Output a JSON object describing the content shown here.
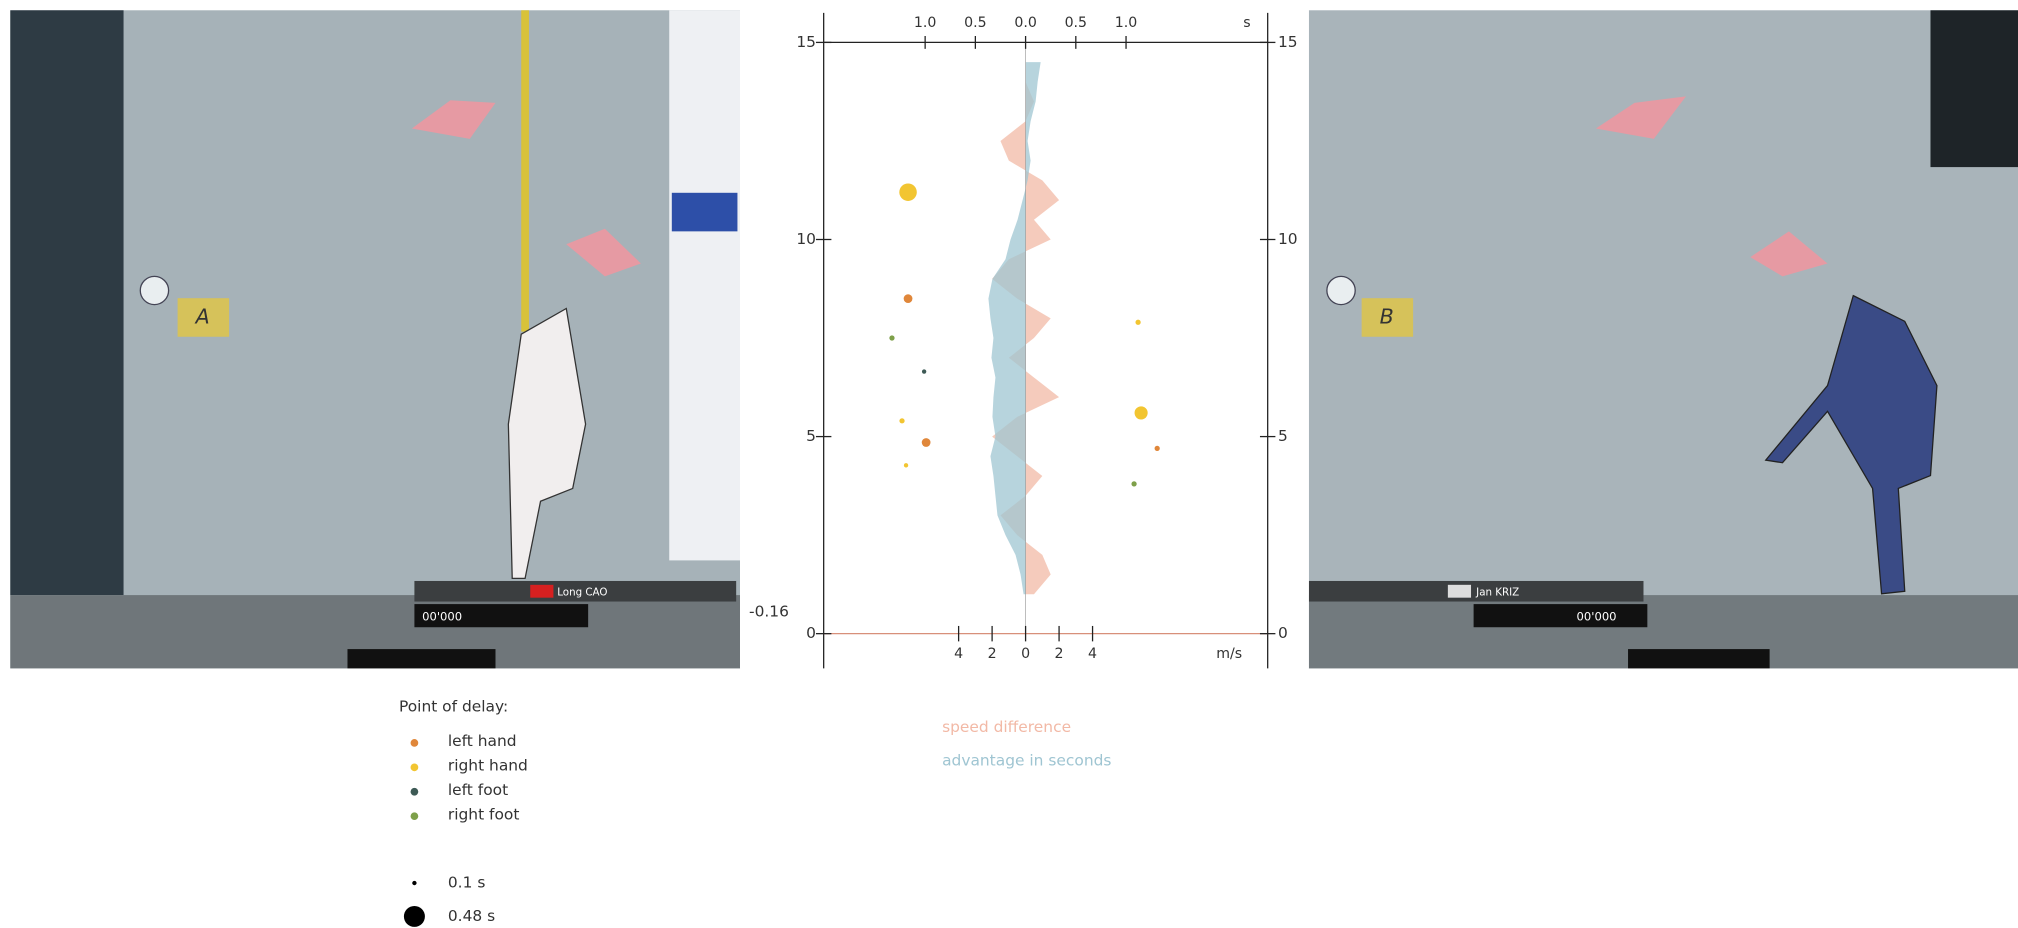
{
  "left_panel": {
    "marker": "A",
    "athlete": "Long CAO",
    "time": "00'000"
  },
  "right_panel": {
    "marker": "B",
    "athlete": "Jan KRIZ",
    "time": "00'000"
  },
  "chart_data": {
    "type": "scatter",
    "ylim": [
      0,
      15
    ],
    "yticks": [
      0,
      5,
      10,
      15
    ],
    "xlim": [
      -2.01,
      2.41
    ],
    "x_unit": "s",
    "xticks": [
      {
        "value": -1,
        "label": "1.0"
      },
      {
        "value": -0.5,
        "label": "0.5"
      },
      {
        "value": 0,
        "label": "0.0"
      },
      {
        "value": 0.5,
        "label": "0.5"
      },
      {
        "value": 1,
        "label": "1.0"
      }
    ],
    "x2lim": [
      -12.06,
      14.46
    ],
    "x2_unit": "m/s",
    "x2ticks": [
      {
        "value": -4,
        "label": "4"
      },
      {
        "value": -2,
        "label": "2"
      },
      0,
      2,
      4
    ],
    "annotation": "-0.16",
    "heights": [
      1,
      1.5,
      2,
      2.5,
      3,
      3.5,
      4,
      4.5,
      5,
      5.5,
      6,
      6.5,
      7,
      7.5,
      8,
      8.5,
      9,
      9.5,
      10,
      10.5,
      11,
      11.5,
      12,
      12.5,
      13,
      13.5,
      14,
      14.5
    ],
    "series": [
      {
        "name": "speed difference",
        "color": "#f2b9a6",
        "axis": "x2",
        "values": [
          0.5,
          1.5,
          1,
          -0.5,
          -1.5,
          0,
          1,
          -0.5,
          -2,
          -0.5,
          2,
          0.5,
          -1,
          0.5,
          1.5,
          -0.5,
          -2,
          -1,
          1.5,
          0.5,
          2,
          1,
          -1,
          -1.5,
          0,
          0.5,
          0,
          0
        ]
      },
      {
        "name": "advantage in seconds",
        "color": "#9fc5d2",
        "values": [
          -0.02,
          -0.05,
          -0.1,
          -0.2,
          -0.28,
          -0.3,
          -0.32,
          -0.35,
          -0.3,
          -0.33,
          -0.32,
          -0.3,
          -0.34,
          -0.32,
          -0.35,
          -0.37,
          -0.33,
          -0.2,
          -0.15,
          -0.08,
          -0.03,
          0.02,
          0.05,
          0.02,
          0.05,
          0.1,
          0.12,
          0.15
        ]
      }
    ],
    "delay_title": "Point of delay:",
    "delays": [
      {
        "name": "left hand",
        "color": "#e0873a",
        "x": [
          -1.17,
          -0.99,
          1.31
        ],
        "y": [
          8.5,
          4.85,
          4.7
        ],
        "size": [
          0.2,
          0.2,
          0.12
        ]
      },
      {
        "name": "right hand",
        "color": "#f2c531",
        "x": [
          -1.17,
          -1.23,
          -1.19,
          1.12,
          1.15
        ],
        "y": [
          11.2,
          5.4,
          4.27,
          7.9,
          5.6
        ],
        "size": [
          0.4,
          0.12,
          0.1,
          0.12,
          0.3
        ]
      },
      {
        "name": "left foot",
        "color": "#3d5a55",
        "x": [
          -1.01
        ],
        "y": [
          6.65
        ],
        "size": [
          0.1
        ]
      },
      {
        "name": "right foot",
        "color": "#7ea04a",
        "x": [
          -1.33,
          1.08
        ],
        "y": [
          7.5,
          3.8
        ],
        "size": [
          0.12,
          0.12
        ]
      }
    ],
    "size_legend": [
      {
        "value": 0.1,
        "label": "0.1 s"
      },
      {
        "value": 0.48,
        "label": "0.48 s"
      }
    ]
  }
}
